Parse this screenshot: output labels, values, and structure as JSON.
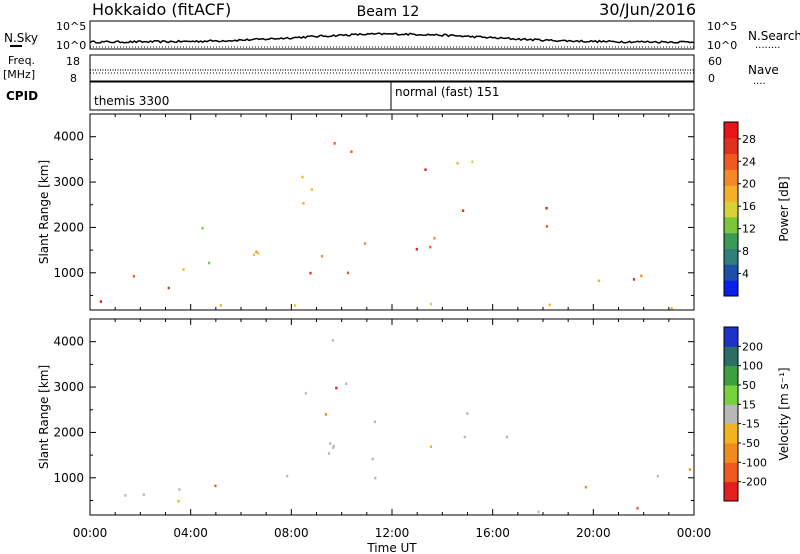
{
  "header": {
    "station": "Hokkaido (fitACF)",
    "beam": "Beam 12",
    "date": "30/Jun/2016"
  },
  "panels": {
    "noise": {
      "left_label": "N.Sky",
      "right_label": "N.Search",
      "ticks": [
        "10^5",
        "10^0"
      ],
      "legend_mark": "........"
    },
    "freq": {
      "left_label_1": "Freq.",
      "left_label_2": "[MHz]",
      "right_label": "Nave",
      "left_ticks": [
        "18",
        "8"
      ],
      "right_ticks": [
        "60",
        "0"
      ],
      "legend_mark": "...."
    },
    "cpid": {
      "left_label": "CPID",
      "programs": [
        "themis 3300",
        "normal (fast) 151"
      ]
    }
  },
  "chart_data": [
    {
      "type": "heatmap",
      "title": "",
      "xlabel": "Time UT",
      "ylabel": "Slant Range [km]",
      "x_ticks": [
        "00:00",
        "04:00",
        "08:00",
        "12:00",
        "16:00",
        "20:00",
        "00:00"
      ],
      "x_range_hours": [
        0,
        24
      ],
      "y_ticks": [
        1000,
        2000,
        3000,
        4000
      ],
      "ylim": [
        180,
        4500
      ],
      "colorbar": {
        "label": "Power [dB]",
        "ticks": [
          "4",
          "8",
          "12",
          "16",
          "20",
          "24",
          "28"
        ],
        "colors": [
          "#0a1ef0",
          "#1e4fa8",
          "#2f7f7a",
          "#3b9a57",
          "#7cc63c",
          "#d8d238",
          "#f5b02a",
          "#f5882a",
          "#ef5a22",
          "#e0301e",
          "#e8141a"
        ]
      },
      "echo_regions": [
        {
          "t0": 0.2,
          "t1": 4.0,
          "r0": 300,
          "r1": 700,
          "level": 0.95
        },
        {
          "t0": 0.2,
          "t1": 5.0,
          "r0": 700,
          "r1": 1250,
          "level": 0.6
        },
        {
          "t0": 2.0,
          "t1": 7.0,
          "r0": 1400,
          "r1": 2200,
          "level": 0.55
        },
        {
          "t0": 6.5,
          "t1": 11.5,
          "r0": 700,
          "r1": 1100,
          "level": 0.85
        },
        {
          "t0": 8.0,
          "t1": 10.5,
          "r0": 2300,
          "r1": 4100,
          "level": 0.55
        },
        {
          "t0": 9.0,
          "t1": 12.0,
          "r0": 1300,
          "r1": 1900,
          "level": 0.75
        },
        {
          "t0": 11.5,
          "t1": 15.0,
          "r0": 1500,
          "r1": 2300,
          "level": 0.75
        },
        {
          "t0": 14.5,
          "t1": 19.5,
          "r0": 1900,
          "r1": 2500,
          "level": 0.92
        },
        {
          "t0": 13.0,
          "t1": 15.5,
          "r0": 3000,
          "r1": 4000,
          "level": 0.7
        },
        {
          "t0": 19.0,
          "t1": 24.0,
          "r0": 700,
          "r1": 1300,
          "level": 0.85
        },
        {
          "t0": 0.5,
          "t1": 24.0,
          "r0": 200,
          "r1": 380,
          "level": 0.7
        }
      ]
    },
    {
      "type": "heatmap",
      "title": "",
      "xlabel": "Time UT",
      "ylabel": "Slant Range [km]",
      "x_ticks": [
        "00:00",
        "04:00",
        "08:00",
        "12:00",
        "16:00",
        "20:00",
        "00:00"
      ],
      "x_range_hours": [
        0,
        24
      ],
      "y_ticks": [
        1000,
        2000,
        3000,
        4000
      ],
      "ylim": [
        180,
        4500
      ],
      "colorbar": {
        "label": "Velocity [m s⁻¹]",
        "ticks": [
          "200",
          "100",
          "50",
          "15",
          "-15",
          "-50",
          "-100",
          "-200"
        ],
        "colors": [
          "#1e32c8",
          "#2a6e64",
          "#3ca03c",
          "#78d23c",
          "#b8b8b8",
          "#f0b41e",
          "#f08c1e",
          "#ef5a1e",
          "#e61e1e"
        ]
      },
      "echo_regions": [
        {
          "t0": 0.2,
          "t1": 5.0,
          "r0": 300,
          "r1": 1250,
          "level": 0.55
        },
        {
          "t0": 6.5,
          "t1": 11.5,
          "r0": 700,
          "r1": 1100,
          "level": 0.5
        },
        {
          "t0": 8.0,
          "t1": 10.5,
          "r0": 2300,
          "r1": 4100,
          "level": 0.5
        },
        {
          "t0": 9.0,
          "t1": 15.0,
          "r0": 1300,
          "r1": 2300,
          "level": 0.5
        },
        {
          "t0": 14.5,
          "t1": 19.5,
          "r0": 1900,
          "r1": 2500,
          "level": 0.5
        },
        {
          "t0": 19.0,
          "t1": 24.0,
          "r0": 700,
          "r1": 1300,
          "level": 0.5
        },
        {
          "t0": 10.0,
          "t1": 22.0,
          "r0": 250,
          "r1": 400,
          "level": 0.15
        }
      ]
    }
  ]
}
